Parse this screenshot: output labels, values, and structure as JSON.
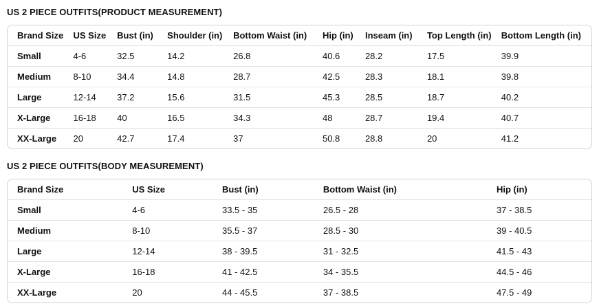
{
  "page": {
    "text_color": "#0f1111",
    "border_color": "#d0d5d5",
    "divider_color": "#dfe3e3",
    "background": "#ffffff"
  },
  "tables": [
    {
      "title": "US 2 PIECE OUTFITS(PRODUCT MEASUREMENT)",
      "columns": [
        "Brand Size",
        "US Size",
        "Bust (in)",
        "Shoulder (in)",
        "Bottom Waist (in)",
        "Hip (in)",
        "Inseam (in)",
        "Top Length (in)",
        "Bottom Length (in)"
      ],
      "rows": [
        [
          "Small",
          "4-6",
          "32.5",
          "14.2",
          "26.8",
          "40.6",
          "28.2",
          "17.5",
          "39.9"
        ],
        [
          "Medium",
          "8-10",
          "34.4",
          "14.8",
          "28.7",
          "42.5",
          "28.3",
          "18.1",
          "39.8"
        ],
        [
          "Large",
          "12-14",
          "37.2",
          "15.6",
          "31.5",
          "45.3",
          "28.5",
          "18.7",
          "40.2"
        ],
        [
          "X-Large",
          "16-18",
          "40",
          "16.5",
          "34.3",
          "48",
          "28.7",
          "19.4",
          "40.7"
        ],
        [
          "XX-Large",
          "20",
          "42.7",
          "17.4",
          "37",
          "50.8",
          "28.8",
          "20",
          "41.2"
        ]
      ]
    },
    {
      "title": "US 2 PIECE OUTFITS(BODY MEASUREMENT)",
      "columns": [
        "Brand Size",
        "US Size",
        "Bust (in)",
        "Bottom Waist (in)",
        "Hip (in)"
      ],
      "rows": [
        [
          "Small",
          "4-6",
          "33.5 - 35",
          "26.5 - 28",
          "37 - 38.5"
        ],
        [
          "Medium",
          "8-10",
          "35.5 - 37",
          "28.5 - 30",
          "39 - 40.5"
        ],
        [
          "Large",
          "12-14",
          "38 - 39.5",
          "31 - 32.5",
          "41.5 - 43"
        ],
        [
          "X-Large",
          "16-18",
          "41 - 42.5",
          "34 - 35.5",
          "44.5 - 46"
        ],
        [
          "XX-Large",
          "20",
          "44 - 45.5",
          "37 - 38.5",
          "47.5 - 49"
        ]
      ]
    }
  ]
}
